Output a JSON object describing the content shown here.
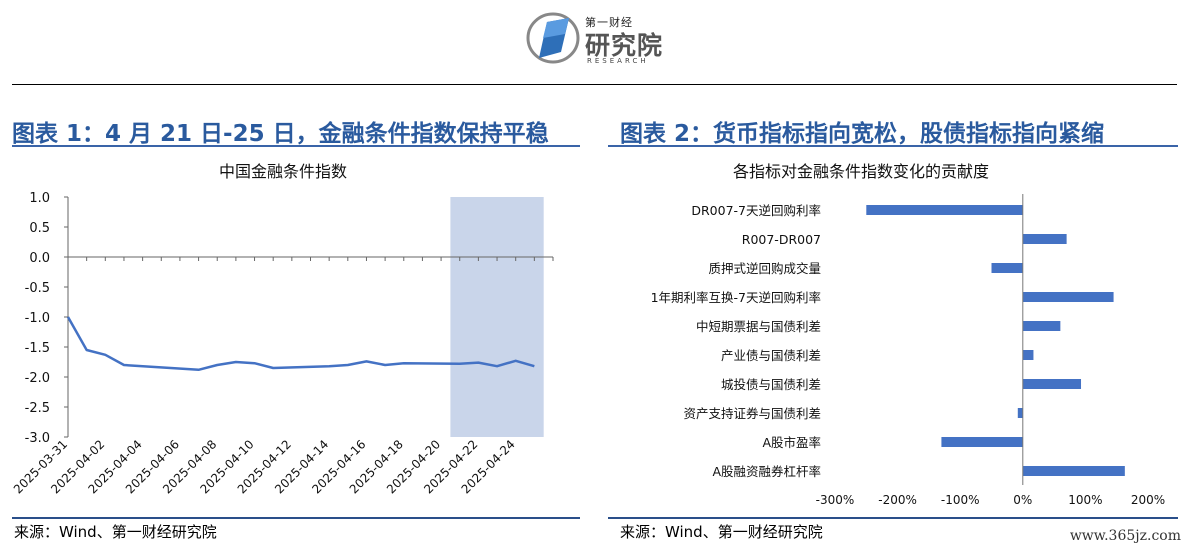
{
  "header": {
    "logo_small": "第一财经",
    "logo_big": "研究院",
    "logo_en": "RESEARCH"
  },
  "left_panel": {
    "title": "图表 1：4 月 21 日-25 日，金融条件指数保持平稳",
    "subtitle": "中国金融条件指数",
    "source": "来源：Wind、第一财经研究院"
  },
  "right_panel": {
    "title": "图表 2：货币指标指向宽松，股债指标指向紧缩",
    "subtitle": "各指标对金融条件指数变化的贡献度",
    "source": "来源：Wind、第一财经研究院"
  },
  "watermark": "www.365jz.com",
  "colors": {
    "accent": "#4472c4",
    "title": "#2a5a9e",
    "highlight": "#c9d5ea"
  },
  "chart_data": [
    {
      "type": "line",
      "ylim": [
        -3.0,
        1.0
      ],
      "yticks": [
        "1.0",
        "0.5",
        "0.0",
        "-0.5",
        "-1.0",
        "-1.5",
        "-2.0",
        "-2.5",
        "-3.0"
      ],
      "ytick_values": [
        1.0,
        0.5,
        0.0,
        -0.5,
        -1.0,
        -1.5,
        -2.0,
        -2.5,
        -3.0
      ],
      "xtick_labels": [
        "2025-03-31",
        "2025-04-02",
        "2025-04-04",
        "2025-04-06",
        "2025-04-08",
        "2025-04-10",
        "2025-04-12",
        "2025-04-14",
        "2025-04-16",
        "2025-04-18",
        "2025-04-20",
        "2025-04-22",
        "2025-04-24"
      ],
      "x": [
        "2025-03-31",
        "2025-04-01",
        "2025-04-02",
        "2025-04-03",
        "2025-04-07",
        "2025-04-08",
        "2025-04-09",
        "2025-04-10",
        "2025-04-11",
        "2025-04-14",
        "2025-04-15",
        "2025-04-16",
        "2025-04-17",
        "2025-04-18",
        "2025-04-21",
        "2025-04-22",
        "2025-04-23",
        "2025-04-24",
        "2025-04-25"
      ],
      "x_index": [
        0,
        1,
        2,
        3,
        7,
        8,
        9,
        10,
        11,
        14,
        15,
        16,
        17,
        18,
        21,
        22,
        23,
        24,
        25
      ],
      "values": [
        -1.0,
        -1.55,
        -1.63,
        -1.8,
        -1.88,
        -1.8,
        -1.75,
        -1.77,
        -1.85,
        -1.82,
        -1.8,
        -1.74,
        -1.8,
        -1.77,
        -1.78,
        -1.76,
        -1.82,
        -1.73,
        -1.82
      ],
      "highlight_range": [
        "2025-04-21",
        "2025-04-25"
      ],
      "grid": false
    },
    {
      "type": "bar",
      "orientation": "horizontal",
      "categories": [
        "DR007-7天逆回购利率",
        "R007-DR007",
        "质押式逆回购成交量",
        "1年期利率互换-7天逆回购利率",
        "中短期票据与国债利差",
        "产业债与国债利差",
        "城投债与国债利差",
        "资产支持证券与国债利差",
        "A股市盈率",
        "A股融资融券杠杆率"
      ],
      "values": [
        -250,
        70,
        -50,
        145,
        60,
        17,
        93,
        -8,
        -130,
        163
      ],
      "xlim": [
        -300,
        200
      ],
      "xticks": [
        "-300%",
        "-200%",
        "-100%",
        "0%",
        "100%",
        "200%"
      ],
      "xtick_values": [
        -300,
        -200,
        -100,
        0,
        100,
        200
      ],
      "grid": false
    }
  ]
}
